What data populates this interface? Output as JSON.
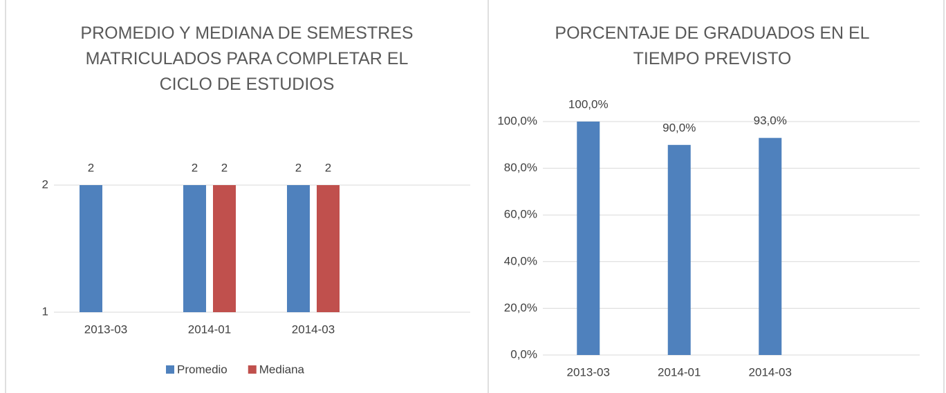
{
  "chart_data": [
    {
      "type": "bar",
      "title": "PROMEDIO Y MEDIANA DE SEMESTRES MATRICULADOS PARA COMPLETAR EL CICLO DE ESTUDIOS",
      "categories": [
        "2013-03",
        "2014-01",
        "2014-03"
      ],
      "series": [
        {
          "name": "Promedio",
          "color": "#4f81bd",
          "values": [
            2,
            2,
            2
          ]
        },
        {
          "name": "Mediana",
          "color": "#c0504d",
          "values": [
            null,
            2,
            2
          ]
        }
      ],
      "ylim": [
        1,
        2
      ],
      "yticks": [
        1,
        2
      ],
      "grid": true,
      "legend": "bottom"
    },
    {
      "type": "bar",
      "title": "PORCENTAJE DE GRADUADOS EN EL TIEMPO PREVISTO",
      "categories": [
        "2013-03",
        "2014-01",
        "2014-03"
      ],
      "series": [
        {
          "name": null,
          "color": "#4f81bd",
          "values": [
            100,
            90,
            93
          ],
          "value_labels": [
            "100,0%",
            "90,0%",
            "93,0%"
          ]
        }
      ],
      "ylim": [
        0,
        100
      ],
      "yticks": [
        {
          "value": 0,
          "label": "0,0%"
        },
        {
          "value": 20,
          "label": "20,0%"
        },
        {
          "value": 40,
          "label": "40,0%"
        },
        {
          "value": 60,
          "label": "60,0%"
        },
        {
          "value": 80,
          "label": "80,0%"
        },
        {
          "value": 100,
          "label": "100,0%"
        }
      ],
      "grid": true
    }
  ]
}
